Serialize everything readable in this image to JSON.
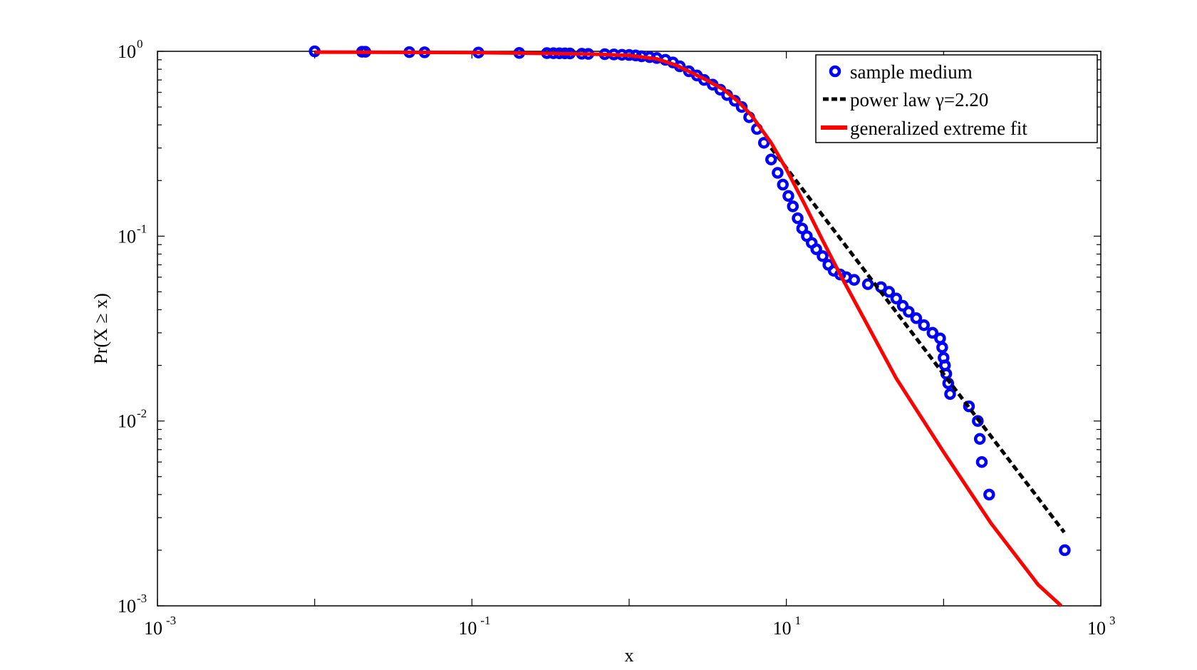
{
  "chart_data": {
    "type": "scatter",
    "xlabel": "x",
    "ylabel": "Pr(X ≥ x)",
    "x_scale": "log",
    "y_scale": "log",
    "xlim": [
      0.001,
      1000
    ],
    "ylim": [
      0.001,
      1
    ],
    "grid": false,
    "legend_position": "top-right",
    "x_ticks": [
      {
        "base": "10",
        "exp": "-3",
        "value": 0.001
      },
      {
        "base": "10",
        "exp": "-1",
        "value": 0.1
      },
      {
        "base": "10",
        "exp": "1",
        "value": 10
      },
      {
        "base": "10",
        "exp": "3",
        "value": 1000
      }
    ],
    "y_ticks": [
      {
        "base": "10",
        "exp": "0",
        "value": 1
      },
      {
        "base": "10",
        "exp": "-1",
        "value": 0.1
      },
      {
        "base": "10",
        "exp": "-2",
        "value": 0.01
      },
      {
        "base": "10",
        "exp": "-3",
        "value": 0.001
      }
    ],
    "series": [
      {
        "name": "sample medium",
        "type": "scatter",
        "color": "#0000ff",
        "points": [
          [
            0.01,
            1.0
          ],
          [
            0.02,
            0.995
          ],
          [
            0.021,
            0.994
          ],
          [
            0.04,
            0.99
          ],
          [
            0.05,
            0.988
          ],
          [
            0.11,
            0.985
          ],
          [
            0.2,
            0.98
          ],
          [
            0.3,
            0.978
          ],
          [
            0.33,
            0.977
          ],
          [
            0.36,
            0.976
          ],
          [
            0.39,
            0.975
          ],
          [
            0.42,
            0.974
          ],
          [
            0.5,
            0.97
          ],
          [
            0.55,
            0.968
          ],
          [
            0.7,
            0.965
          ],
          [
            0.8,
            0.962
          ],
          [
            0.9,
            0.958
          ],
          [
            1.0,
            0.955
          ],
          [
            1.1,
            0.95
          ],
          [
            1.2,
            0.94
          ],
          [
            1.35,
            0.93
          ],
          [
            1.5,
            0.92
          ],
          [
            1.7,
            0.9
          ],
          [
            1.9,
            0.87
          ],
          [
            2.1,
            0.83
          ],
          [
            2.4,
            0.78
          ],
          [
            2.7,
            0.74
          ],
          [
            3.0,
            0.7
          ],
          [
            3.4,
            0.66
          ],
          [
            3.8,
            0.62
          ],
          [
            4.2,
            0.58
          ],
          [
            4.7,
            0.54
          ],
          [
            5.2,
            0.5
          ],
          [
            5.8,
            0.44
          ],
          [
            6.5,
            0.38
          ],
          [
            7.2,
            0.32
          ],
          [
            8.0,
            0.26
          ],
          [
            8.8,
            0.22
          ],
          [
            9.5,
            0.19
          ],
          [
            10.3,
            0.165
          ],
          [
            11.0,
            0.145
          ],
          [
            11.8,
            0.125
          ],
          [
            12.6,
            0.11
          ],
          [
            13.5,
            0.1
          ],
          [
            14.5,
            0.092
          ],
          [
            15.5,
            0.085
          ],
          [
            17.0,
            0.078
          ],
          [
            18.5,
            0.07
          ],
          [
            20.0,
            0.065
          ],
          [
            22.0,
            0.062
          ],
          [
            24.0,
            0.06
          ],
          [
            27.0,
            0.058
          ],
          [
            33.0,
            0.055
          ],
          [
            40.0,
            0.053
          ],
          [
            45.0,
            0.05
          ],
          [
            50.0,
            0.046
          ],
          [
            55.0,
            0.042
          ],
          [
            60.0,
            0.039
          ],
          [
            67.0,
            0.036
          ],
          [
            75.0,
            0.033
          ],
          [
            85.0,
            0.03
          ],
          [
            95.0,
            0.028
          ],
          [
            98.0,
            0.025
          ],
          [
            100.0,
            0.022
          ],
          [
            102.0,
            0.02
          ],
          [
            104.0,
            0.018
          ],
          [
            107.0,
            0.016
          ],
          [
            110.0,
            0.014
          ],
          [
            145.0,
            0.012
          ],
          [
            165.0,
            0.01
          ],
          [
            170.0,
            0.008
          ],
          [
            175.0,
            0.006
          ],
          [
            195.0,
            0.004
          ],
          [
            590.0,
            0.002
          ]
        ]
      },
      {
        "name": "power law γ=2.20",
        "type": "line",
        "style": "dashed",
        "color": "#000000",
        "points": [
          [
            8.0,
            0.3
          ],
          [
            585.0,
            0.0025
          ]
        ]
      },
      {
        "name": "generalized extreme fit",
        "type": "line",
        "color": "#ff0000",
        "points": [
          [
            0.01,
            0.99
          ],
          [
            0.1,
            0.985
          ],
          [
            0.3,
            0.975
          ],
          [
            0.6,
            0.965
          ],
          [
            1.0,
            0.95
          ],
          [
            1.5,
            0.91
          ],
          [
            2.0,
            0.84
          ],
          [
            3.0,
            0.71
          ],
          [
            4.0,
            0.62
          ],
          [
            5.0,
            0.53
          ],
          [
            6.0,
            0.45
          ],
          [
            8.0,
            0.32
          ],
          [
            10.0,
            0.23
          ],
          [
            13.0,
            0.15
          ],
          [
            17.0,
            0.095
          ],
          [
            22.0,
            0.062
          ],
          [
            30.0,
            0.038
          ],
          [
            50.0,
            0.017
          ],
          [
            100.0,
            0.0068
          ],
          [
            200.0,
            0.0028
          ],
          [
            400.0,
            0.0013
          ],
          [
            560.0,
            0.001
          ]
        ]
      }
    ]
  }
}
